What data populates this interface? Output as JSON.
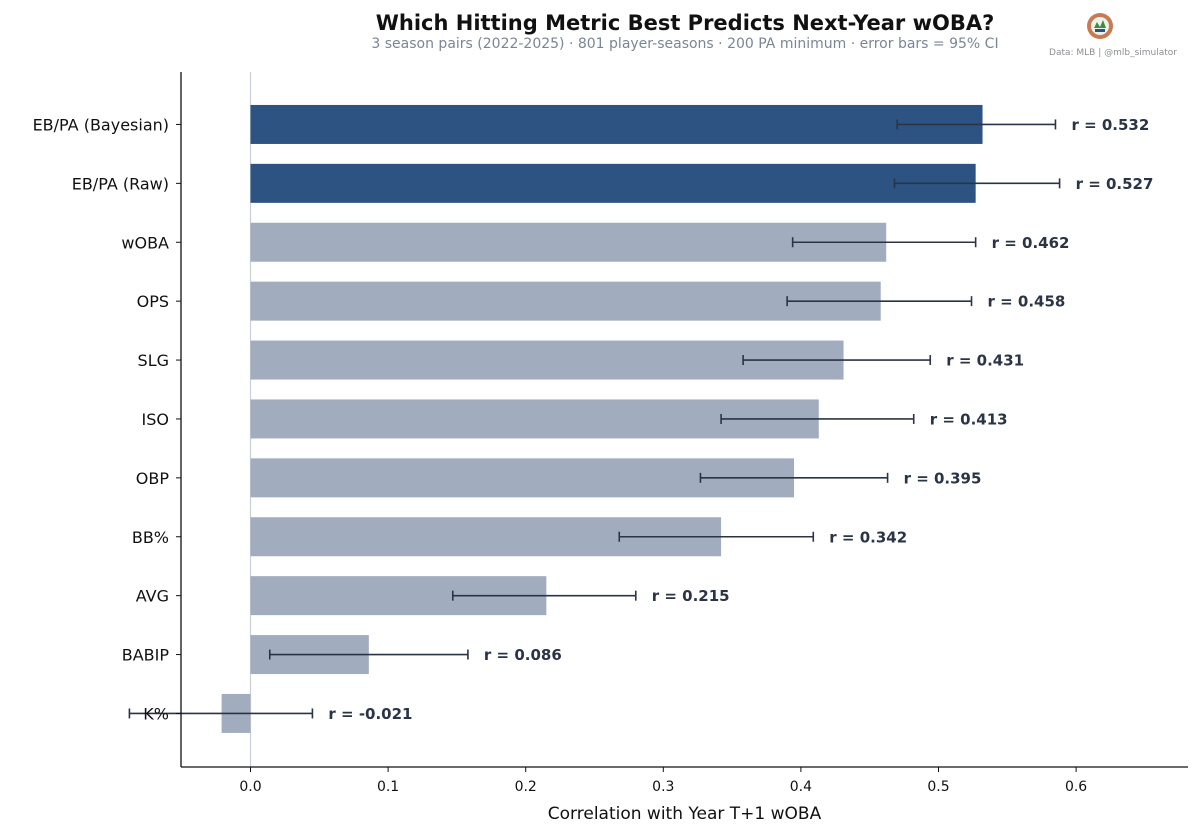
{
  "chart_data": {
    "type": "bar",
    "orientation": "horizontal",
    "title": "Which Hitting Metric Best Predicts Next-Year wOBA?",
    "subtitle": "3 season pairs (2022-2025) · 801 player-seasons · 200 PA minimum · error bars = 95% CI",
    "credit": "Data: MLB  |  @mlb_simulator",
    "xlabel": "Correlation with Year T+1 wOBA",
    "ylabel": "",
    "xlim": [
      -0.05,
      0.66
    ],
    "xticks": [
      0.0,
      0.1,
      0.2,
      0.3,
      0.4,
      0.5,
      0.6
    ],
    "xtick_labels": [
      "0.0",
      "0.1",
      "0.2",
      "0.3",
      "0.4",
      "0.5",
      "0.6"
    ],
    "grid": false,
    "categories": [
      "EB/PA (Bayesian)",
      "EB/PA (Raw)",
      "wOBA",
      "OPS",
      "SLG",
      "ISO",
      "OBP",
      "BB%",
      "AVG",
      "BABIP",
      "K%"
    ],
    "values": [
      0.532,
      0.527,
      0.462,
      0.458,
      0.431,
      0.413,
      0.395,
      0.342,
      0.215,
      0.086,
      -0.021
    ],
    "ci_low": [
      0.47,
      0.468,
      0.394,
      0.39,
      0.358,
      0.342,
      0.327,
      0.268,
      0.147,
      0.014,
      -0.088
    ],
    "ci_high": [
      0.585,
      0.588,
      0.527,
      0.524,
      0.494,
      0.482,
      0.463,
      0.409,
      0.28,
      0.158,
      0.045
    ],
    "value_labels": [
      "r = 0.532",
      "r = 0.527",
      "r = 0.462",
      "r = 0.458",
      "r = 0.431",
      "r = 0.413",
      "r = 0.395",
      "r = 0.342",
      "r = 0.215",
      "r = 0.086",
      "r = -0.021"
    ],
    "highlight": [
      "EB/PA (Bayesian)",
      "EB/PA (Raw)"
    ],
    "colors": {
      "highlight_bar": "#2d5382",
      "bar": "#a1adbe",
      "error_bar": "#2b3445",
      "zero_line": "#c8cfd8",
      "axis": "#111111"
    }
  }
}
